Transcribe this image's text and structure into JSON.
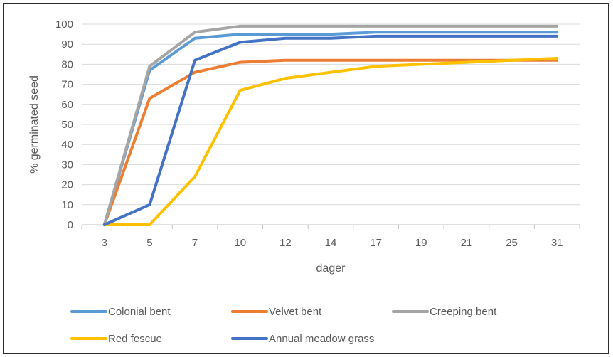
{
  "chart_data": {
    "type": "line",
    "title": "",
    "xlabel": "dager",
    "ylabel": "% germinated seed",
    "categories": [
      "3",
      "5",
      "7",
      "10",
      "12",
      "14",
      "17",
      "19",
      "21",
      "25",
      "31"
    ],
    "ylim": [
      0,
      100
    ],
    "yticks": [
      0,
      10,
      20,
      30,
      40,
      50,
      60,
      70,
      80,
      90,
      100
    ],
    "grid": true,
    "legend_position": "bottom",
    "series": [
      {
        "name": "Colonial bent",
        "color": "#5B9BD5",
        "values": [
          0,
          77,
          93,
          95,
          95,
          95,
          96,
          96,
          96,
          96,
          96
        ]
      },
      {
        "name": "Velvet bent",
        "color": "#ED7D31",
        "values": [
          0,
          63,
          76,
          81,
          82,
          82,
          82,
          82,
          82,
          82,
          82
        ]
      },
      {
        "name": "Creeping bent",
        "color": "#A5A5A5",
        "values": [
          0,
          79,
          96,
          99,
          99,
          99,
          99,
          99,
          99,
          99,
          99
        ]
      },
      {
        "name": "Red fescue",
        "color": "#FFC000",
        "values": [
          0,
          0,
          24,
          67,
          73,
          76,
          79,
          80,
          81,
          82,
          83
        ]
      },
      {
        "name": "Annual meadow grass",
        "color": "#4472C4",
        "values": [
          0,
          10,
          82,
          91,
          93,
          93,
          94,
          94,
          94,
          94,
          94
        ]
      }
    ]
  }
}
